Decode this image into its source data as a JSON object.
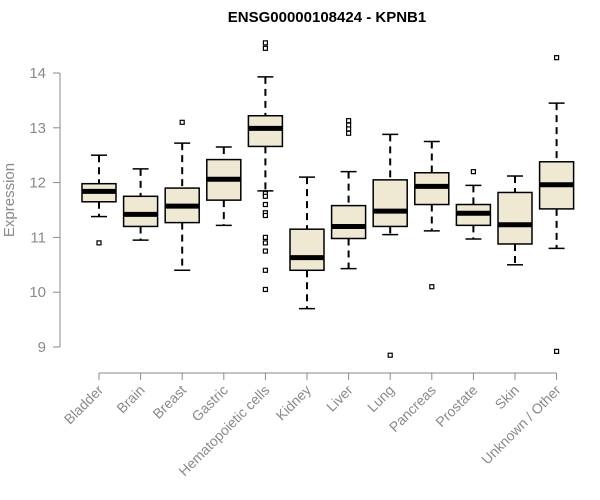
{
  "chart_data": {
    "type": "box",
    "title": "ENSG00000108424 - KPNB1",
    "ylabel": "Expression",
    "xlabel": "",
    "ylim": [
      8.75,
      14.6
    ],
    "yticks": [
      9,
      10,
      11,
      12,
      13,
      14
    ],
    "colors": {
      "box_fill": "#efe8d2",
      "box_stroke": "#000000",
      "axis": "#8a8a8a"
    },
    "categories": [
      "Bladder",
      "Brain",
      "Breast",
      "Gastric",
      "Hematopoietic cells",
      "Kidney",
      "Liver",
      "Lung",
      "Pancreas",
      "Prostate",
      "Skin",
      "Unknown / Other"
    ],
    "boxes": [
      {
        "category": "Bladder",
        "whisker_low": 11.38,
        "q1": 11.65,
        "median": 11.84,
        "q3": 11.98,
        "whisker_high": 12.5,
        "outliers": [
          10.9
        ]
      },
      {
        "category": "Brain",
        "whisker_low": 10.95,
        "q1": 11.2,
        "median": 11.42,
        "q3": 11.75,
        "whisker_high": 12.25,
        "outliers": []
      },
      {
        "category": "Breast",
        "whisker_low": 10.4,
        "q1": 11.27,
        "median": 11.57,
        "q3": 11.9,
        "whisker_high": 12.72,
        "outliers": [
          13.1
        ]
      },
      {
        "category": "Gastric",
        "whisker_low": 11.22,
        "q1": 11.68,
        "median": 12.06,
        "q3": 12.42,
        "whisker_high": 12.65,
        "outliers": []
      },
      {
        "category": "Hematopoietic cells",
        "whisker_low": 11.85,
        "q1": 12.66,
        "median": 12.99,
        "q3": 13.22,
        "whisker_high": 13.93,
        "outliers": [
          14.55,
          14.45,
          11.8,
          11.75,
          11.6,
          11.45,
          11.4,
          11.0,
          10.9,
          10.75,
          10.4,
          10.05
        ]
      },
      {
        "category": "Kidney",
        "whisker_low": 9.7,
        "q1": 10.4,
        "median": 10.63,
        "q3": 11.15,
        "whisker_high": 12.1,
        "outliers": []
      },
      {
        "category": "Liver",
        "whisker_low": 10.43,
        "q1": 10.98,
        "median": 11.2,
        "q3": 11.58,
        "whisker_high": 12.2,
        "outliers": [
          13.13,
          13.05,
          12.98,
          12.9
        ]
      },
      {
        "category": "Lung",
        "whisker_low": 11.05,
        "q1": 11.2,
        "median": 11.48,
        "q3": 12.05,
        "whisker_high": 12.88,
        "outliers": [
          8.85
        ]
      },
      {
        "category": "Pancreas",
        "whisker_low": 11.12,
        "q1": 11.6,
        "median": 11.93,
        "q3": 12.18,
        "whisker_high": 12.75,
        "outliers": [
          10.1
        ]
      },
      {
        "category": "Prostate",
        "whisker_low": 10.97,
        "q1": 11.22,
        "median": 11.44,
        "q3": 11.6,
        "whisker_high": 11.95,
        "outliers": [
          12.2
        ]
      },
      {
        "category": "Skin",
        "whisker_low": 10.5,
        "q1": 10.88,
        "median": 11.23,
        "q3": 11.82,
        "whisker_high": 12.12,
        "outliers": []
      },
      {
        "category": "Unknown / Other",
        "whisker_low": 10.8,
        "q1": 11.52,
        "median": 11.96,
        "q3": 12.38,
        "whisker_high": 13.45,
        "outliers": [
          14.28,
          8.92
        ]
      }
    ]
  }
}
